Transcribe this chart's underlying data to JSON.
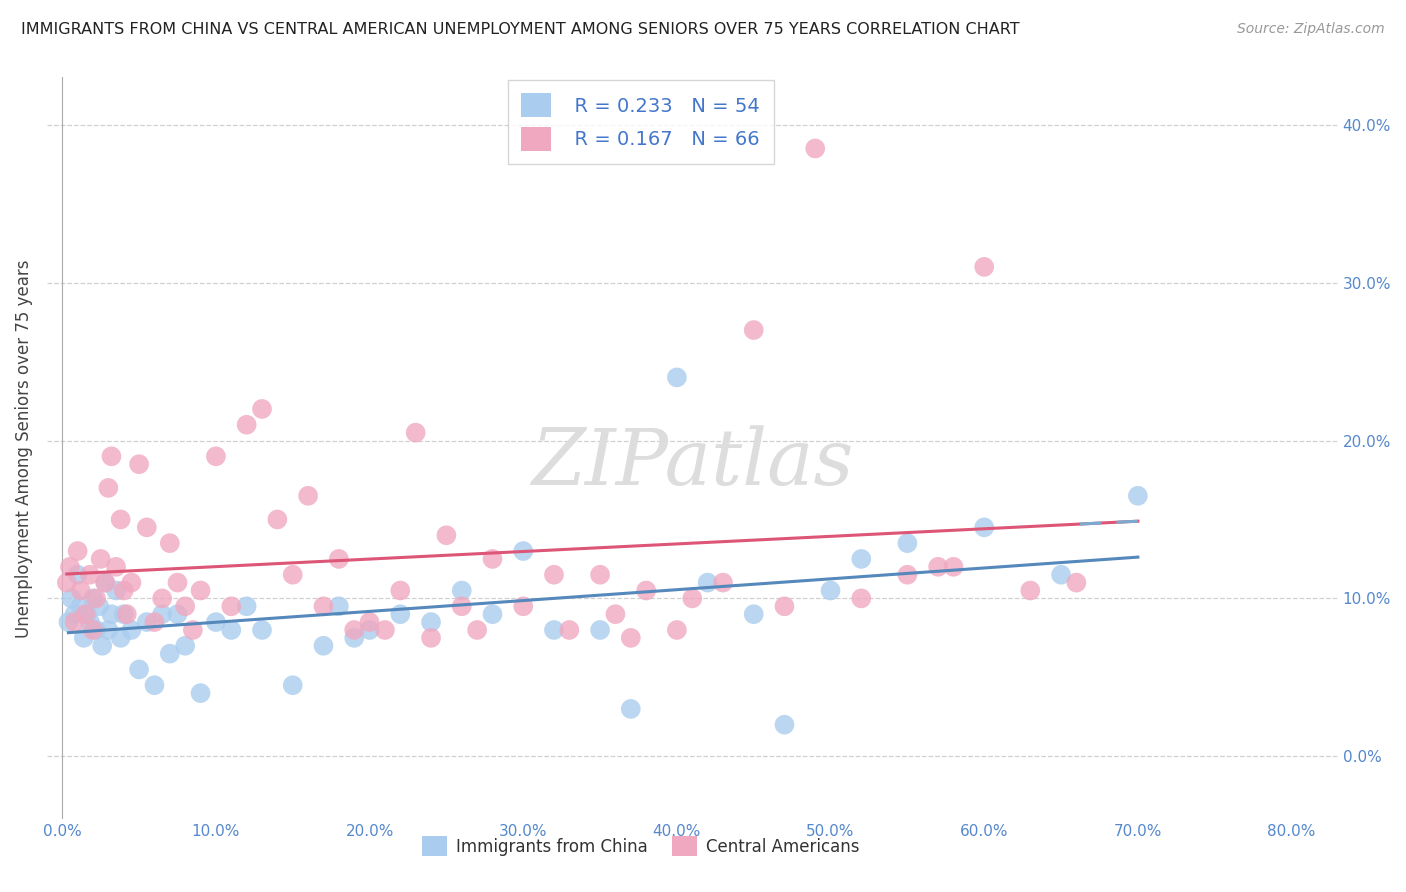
{
  "title": "IMMIGRANTS FROM CHINA VS CENTRAL AMERICAN UNEMPLOYMENT AMONG SENIORS OVER 75 YEARS CORRELATION CHART",
  "source": "Source: ZipAtlas.com",
  "ylabel": "Unemployment Among Seniors over 75 years",
  "ylim": [
    -4,
    43
  ],
  "xlim": [
    -1,
    83
  ],
  "R_china": 0.233,
  "N_china": 54,
  "R_central": 0.167,
  "N_central": 66,
  "color_china": "#aaccee",
  "color_central": "#f0a8c0",
  "trendline_china": "#5588bb",
  "trendline_central": "#dd5577",
  "trendline_dashed": "#7aaad0",
  "yticks": [
    0,
    10,
    20,
    30,
    40
  ],
  "xticks": [
    0,
    10,
    20,
    30,
    40,
    50,
    60,
    70,
    80
  ],
  "china_x": [
    0.4,
    0.6,
    0.8,
    1.0,
    1.2,
    1.4,
    1.6,
    1.8,
    2.0,
    2.2,
    2.4,
    2.6,
    2.8,
    3.0,
    3.2,
    3.5,
    3.8,
    4.0,
    4.5,
    5.0,
    5.5,
    6.0,
    6.5,
    7.0,
    7.5,
    8.0,
    9.0,
    10.0,
    11.0,
    12.0,
    13.0,
    15.0,
    17.0,
    18.0,
    19.0,
    20.0,
    22.0,
    24.0,
    26.0,
    28.0,
    30.0,
    32.0,
    35.0,
    37.0,
    40.0,
    42.0,
    45.0,
    47.0,
    50.0,
    52.0,
    55.0,
    60.0,
    65.0,
    70.0
  ],
  "china_y": [
    8.5,
    10.0,
    9.0,
    11.5,
    9.5,
    7.5,
    9.0,
    8.5,
    10.0,
    8.0,
    9.5,
    7.0,
    11.0,
    8.0,
    9.0,
    10.5,
    7.5,
    9.0,
    8.0,
    5.5,
    8.5,
    4.5,
    9.0,
    6.5,
    9.0,
    7.0,
    4.0,
    8.5,
    8.0,
    9.5,
    8.0,
    4.5,
    7.0,
    9.5,
    7.5,
    8.0,
    9.0,
    8.5,
    10.5,
    9.0,
    13.0,
    8.0,
    8.0,
    3.0,
    24.0,
    11.0,
    9.0,
    2.0,
    10.5,
    12.5,
    13.5,
    14.5,
    11.5,
    16.5
  ],
  "central_x": [
    0.3,
    0.5,
    0.8,
    1.0,
    1.2,
    1.5,
    1.8,
    2.0,
    2.2,
    2.5,
    2.8,
    3.0,
    3.2,
    3.5,
    3.8,
    4.0,
    4.2,
    4.5,
    5.0,
    5.5,
    6.0,
    6.5,
    7.0,
    7.5,
    8.0,
    8.5,
    9.0,
    10.0,
    11.0,
    12.0,
    13.0,
    14.0,
    15.0,
    16.0,
    17.0,
    18.0,
    19.0,
    20.0,
    21.0,
    22.0,
    23.0,
    24.0,
    25.0,
    26.0,
    27.0,
    28.0,
    30.0,
    32.0,
    33.0,
    35.0,
    36.0,
    37.0,
    38.0,
    40.0,
    41.0,
    43.0,
    45.0,
    47.0,
    49.0,
    52.0,
    55.0,
    57.0,
    58.0,
    60.0,
    63.0,
    66.0
  ],
  "central_y": [
    11.0,
    12.0,
    8.5,
    13.0,
    10.5,
    9.0,
    11.5,
    8.0,
    10.0,
    12.5,
    11.0,
    17.0,
    19.0,
    12.0,
    15.0,
    10.5,
    9.0,
    11.0,
    18.5,
    14.5,
    8.5,
    10.0,
    13.5,
    11.0,
    9.5,
    8.0,
    10.5,
    19.0,
    9.5,
    21.0,
    22.0,
    15.0,
    11.5,
    16.5,
    9.5,
    12.5,
    8.0,
    8.5,
    8.0,
    10.5,
    20.5,
    7.5,
    14.0,
    9.5,
    8.0,
    12.5,
    9.5,
    11.5,
    8.0,
    11.5,
    9.0,
    7.5,
    10.5,
    8.0,
    10.0,
    11.0,
    27.0,
    9.5,
    38.5,
    10.0,
    11.5,
    12.0,
    12.0,
    31.0,
    10.5,
    11.0
  ]
}
